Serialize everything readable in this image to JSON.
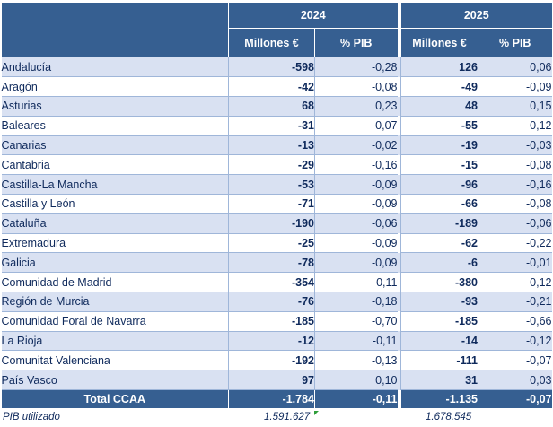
{
  "years": [
    "2024",
    "2025"
  ],
  "col_headers": {
    "millones": "Millones €",
    "pib": "% PIB"
  },
  "rows": [
    {
      "name": "Andalucía",
      "m2024": "-598",
      "p2024": "-0,28",
      "m2025": "126",
      "p2025": "0,06"
    },
    {
      "name": "Aragón",
      "m2024": "-42",
      "p2024": "-0,08",
      "m2025": "-49",
      "p2025": "-0,09"
    },
    {
      "name": "Asturias",
      "m2024": "68",
      "p2024": "0,23",
      "m2025": "48",
      "p2025": "0,15"
    },
    {
      "name": "Baleares",
      "m2024": "-31",
      "p2024": "-0,07",
      "m2025": "-55",
      "p2025": "-0,12"
    },
    {
      "name": "Canarias",
      "m2024": "-13",
      "p2024": "-0,02",
      "m2025": "-19",
      "p2025": "-0,03"
    },
    {
      "name": "Cantabria",
      "m2024": "-29",
      "p2024": "-0,16",
      "m2025": "-15",
      "p2025": "-0,08"
    },
    {
      "name": "Castilla-La Mancha",
      "m2024": "-53",
      "p2024": "-0,09",
      "m2025": "-96",
      "p2025": "-0,16"
    },
    {
      "name": "Castilla y León",
      "m2024": "-71",
      "p2024": "-0,09",
      "m2025": "-66",
      "p2025": "-0,08"
    },
    {
      "name": "Cataluña",
      "m2024": "-190",
      "p2024": "-0,06",
      "m2025": "-189",
      "p2025": "-0,06"
    },
    {
      "name": "Extremadura",
      "m2024": "-25",
      "p2024": "-0,09",
      "m2025": "-62",
      "p2025": "-0,22"
    },
    {
      "name": "Galicia",
      "m2024": "-78",
      "p2024": "-0,09",
      "m2025": "-6",
      "p2025": "-0,01"
    },
    {
      "name": "Comunidad de Madrid",
      "m2024": "-354",
      "p2024": "-0,11",
      "m2025": "-380",
      "p2025": "-0,12"
    },
    {
      "name": "Región de Murcia",
      "m2024": "-76",
      "p2024": "-0,18",
      "m2025": "-93",
      "p2025": "-0,21"
    },
    {
      "name": "Comunidad Foral de Navarra",
      "m2024": "-185",
      "p2024": "-0,70",
      "m2025": "-185",
      "p2025": "-0,66"
    },
    {
      "name": "La Rioja",
      "m2024": "-12",
      "p2024": "-0,11",
      "m2025": "-14",
      "p2025": "-0,12"
    },
    {
      "name": "Comunitat Valenciana",
      "m2024": "-192",
      "p2024": "-0,13",
      "m2025": "-111",
      "p2025": "-0,07"
    },
    {
      "name": "País Vasco",
      "m2024": "97",
      "p2024": "0,10",
      "m2025": "31",
      "p2025": "0,03"
    }
  ],
  "total": {
    "name": "Total CCAA",
    "m2024": "-1.784",
    "p2024": "-0,11",
    "m2025": "-1.135",
    "p2025": "-0,07"
  },
  "footnote": {
    "label": "PIB utilizado",
    "v2024": "1.591.627",
    "v2025": "1.678.545"
  },
  "colors": {
    "header_bg": "#365f91",
    "band": "#d9e1f2",
    "text": "#0f2a5c"
  }
}
